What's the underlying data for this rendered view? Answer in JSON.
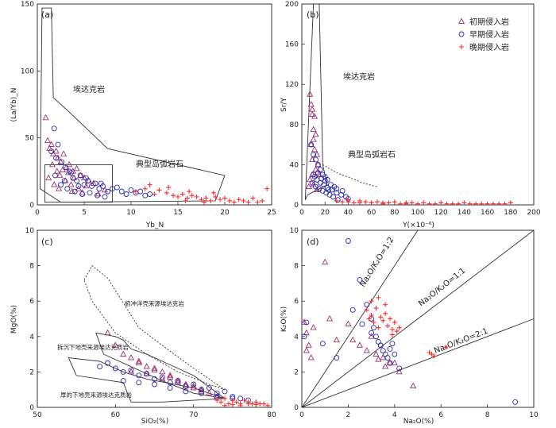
{
  "colors": {
    "early_intrusion_triangle": "#a0306a",
    "mid_intrusion_circle": "#2a2ab0",
    "late_intrusion_cross": "#ff2a2a"
  },
  "legend": [
    {
      "label": "初期侵入岩",
      "symbol": "triangle",
      "color": "#a0306a"
    },
    {
      "label": "早期侵入岩",
      "symbol": "circle",
      "color": "#2a2ab0"
    },
    {
      "label": "晚期侵入岩",
      "symbol": "cross",
      "color": "#ff2a2a"
    }
  ],
  "chart_data": [
    {
      "panel": "(a)",
      "type": "scatter",
      "xlabel": "Yb_N",
      "ylabel": "(La/Yb)_N",
      "xlim": [
        0,
        25
      ],
      "ylim": [
        0,
        150
      ],
      "xticks": [
        0,
        5,
        10,
        15,
        20,
        25
      ],
      "yticks": [
        0,
        50,
        100,
        150
      ],
      "annotations": [
        "埃达克岩",
        "典型岛弧岩石"
      ],
      "fields": [
        {
          "name": "埃达克岩",
          "points": [
            [
              0.5,
              147
            ],
            [
              1.5,
              147
            ],
            [
              1.7,
              80
            ],
            [
              3,
              72
            ],
            [
              7.5,
              42
            ],
            [
              20,
              22
            ],
            [
              19,
              3
            ],
            [
              2.5,
              2
            ],
            [
              0.3,
              12
            ]
          ]
        },
        {
          "name": "典型岛弧岩石",
          "points": [
            [
              0.8,
              30
            ],
            [
              8,
              30
            ],
            [
              8,
              2
            ],
            [
              0.8,
              2
            ]
          ]
        }
      ],
      "series": [
        {
          "name": "初期侵入岩",
          "marker": "triangle",
          "x": [
            0.9,
            1.1,
            1.3,
            1.5,
            1.7,
            2.0,
            2.2,
            2.5,
            2.8,
            3.1,
            3.4,
            3.8,
            4.2,
            4.6,
            5.0,
            5.5,
            6.0,
            1.2,
            1.8,
            2.4,
            3.0,
            3.6,
            4.4,
            5.2,
            2.1,
            2.7,
            3.3,
            3.9,
            1.6,
            2.3,
            3.7,
            4.8,
            6.5,
            7.2
          ],
          "y": [
            65,
            48,
            42,
            45,
            38,
            40,
            35,
            32,
            38,
            28,
            30,
            25,
            27,
            22,
            20,
            18,
            16,
            20,
            15,
            22,
            18,
            15,
            12,
            14,
            25,
            26,
            24,
            20,
            30,
            12,
            10,
            9,
            8,
            11
          ]
        },
        {
          "name": "早期侵入岩",
          "marker": "circle",
          "x": [
            1.8,
            2.2,
            2.6,
            3.0,
            3.4,
            3.8,
            4.2,
            4.6,
            5.0,
            5.4,
            5.8,
            6.2,
            6.6,
            7.0,
            7.5,
            8.0,
            8.5,
            9.0,
            9.5,
            10.0,
            10.5,
            11.0,
            11.5,
            12.0,
            2.5,
            3.2,
            4.0,
            4.8,
            5.6,
            6.4,
            7.2,
            2.0,
            3.6,
            5.2,
            6.8,
            1.5,
            2.9,
            4.4,
            1.9
          ],
          "y": [
            57,
            45,
            32,
            28,
            25,
            20,
            18,
            22,
            15,
            18,
            14,
            16,
            12,
            14,
            10,
            12,
            13,
            10,
            8,
            11,
            9,
            10,
            7,
            8,
            15,
            12,
            10,
            8,
            9,
            7,
            6,
            35,
            24,
            20,
            16,
            40,
            18,
            14,
            22
          ]
        },
        {
          "name": "晚期侵入岩",
          "marker": "cross",
          "x": [
            10.5,
            11.5,
            12.5,
            13.0,
            13.8,
            14.5,
            15.0,
            15.5,
            16.0,
            16.5,
            17.0,
            17.5,
            18.0,
            18.5,
            19.0,
            19.5,
            20.0,
            20.5,
            21.0,
            21.5,
            22.0,
            22.5,
            23.0,
            23.5,
            24.0,
            24.5,
            12.0,
            14.0,
            16.2,
            18.8,
            15.8,
            17.8
          ],
          "y": [
            10,
            12,
            8,
            11,
            9,
            7,
            6,
            8,
            5,
            7,
            6,
            4,
            5,
            3,
            6,
            4,
            5,
            3,
            2,
            4,
            3,
            2,
            5,
            2,
            3,
            12,
            15,
            13,
            10,
            9,
            3,
            2
          ]
        }
      ]
    },
    {
      "panel": "(b)",
      "type": "scatter",
      "xlabel": "Y(×10⁻⁶)",
      "ylabel": "Sr/Y",
      "xlim": [
        0,
        200
      ],
      "ylim": [
        0,
        200
      ],
      "xticks": [
        0,
        20,
        40,
        60,
        80,
        100,
        120,
        140,
        160,
        180,
        200
      ],
      "yticks": [
        0,
        40,
        80,
        120,
        160,
        200
      ],
      "annotations": [
        "埃达克岩",
        "典型岛弧岩石"
      ],
      "fields": [
        {
          "name": "埃达克岩",
          "points": [
            [
              10,
              200
            ],
            [
              15,
              200
            ],
            [
              18,
              40
            ],
            [
              22,
              20
            ],
            [
              5,
              10
            ],
            [
              3,
              5
            ]
          ]
        },
        {
          "name": "典型岛弧岩石",
          "points": [
            [
              18,
              40
            ],
            [
              30,
              32
            ],
            [
              46,
              25
            ],
            [
              52,
              22
            ],
            [
              65,
              18
            ]
          ],
          "style": "dashed"
        }
      ],
      "series": [
        {
          "name": "初期侵入岩",
          "marker": "triangle",
          "x": [
            7,
            8,
            9,
            9,
            10,
            11,
            12,
            8,
            10,
            13,
            14,
            9,
            11,
            12,
            15,
            7,
            10,
            13,
            6,
            9
          ],
          "y": [
            110,
            100,
            90,
            95,
            75,
            88,
            70,
            60,
            65,
            50,
            40,
            45,
            55,
            35,
            30,
            25,
            20,
            15,
            18,
            30
          ]
        },
        {
          "name": "早期侵入岩",
          "marker": "circle",
          "x": [
            8,
            10,
            12,
            14,
            16,
            18,
            20,
            22,
            25,
            28,
            30,
            35,
            10,
            13,
            16,
            19,
            22,
            26,
            30,
            34,
            38,
            40,
            12,
            15,
            18,
            21,
            24,
            9,
            11,
            14,
            17,
            20,
            23,
            27,
            31
          ],
          "y": [
            60,
            50,
            45,
            40,
            35,
            30,
            28,
            25,
            20,
            18,
            16,
            14,
            30,
            25,
            22,
            20,
            17,
            15,
            12,
            10,
            8,
            6,
            18,
            16,
            14,
            12,
            10,
            22,
            28,
            32,
            26,
            24,
            15,
            8,
            5
          ]
        },
        {
          "name": "晚期侵入岩",
          "marker": "cross",
          "x": [
            30,
            35,
            40,
            45,
            50,
            55,
            60,
            65,
            70,
            75,
            80,
            85,
            90,
            95,
            100,
            105,
            110,
            115,
            120,
            125,
            130,
            135,
            140,
            145,
            150,
            155,
            160,
            165,
            170,
            175,
            180,
            40,
            50,
            60,
            70,
            90
          ],
          "y": [
            4,
            3,
            5,
            2,
            4,
            3,
            2,
            3,
            2,
            2,
            3,
            1,
            2,
            2,
            1,
            2,
            1,
            1,
            2,
            1,
            1,
            1,
            2,
            1,
            1,
            1,
            1,
            1,
            1,
            1,
            2,
            3,
            2,
            2,
            1,
            1
          ]
        }
      ]
    },
    {
      "panel": "(c)",
      "type": "scatter",
      "xlabel": "SiO₂(%)",
      "ylabel": "MgO(%)",
      "xlim": [
        50,
        80
      ],
      "ylim": [
        0,
        10
      ],
      "xticks": [
        50,
        60,
        70,
        80
      ],
      "yticks": [
        0,
        2,
        4,
        6,
        8,
        10
      ],
      "annotations": [
        "俯冲洋壳来源埃达克岩",
        "拆沉下地壳来源埃达克质岩",
        "厚的下地壳来源埃达克质岩"
      ],
      "fields": [
        {
          "name": "俯冲洋壳来源埃达克岩",
          "points": [
            [
              56,
              7.2
            ],
            [
              57,
              8.0
            ],
            [
              59,
              7.3
            ],
            [
              63,
              4.5
            ],
            [
              66,
              3.5
            ],
            [
              70,
              2.2
            ],
            [
              74,
              1.0
            ],
            [
              72,
              1.3
            ],
            [
              68,
              2.0
            ],
            [
              64,
              3.0
            ],
            [
              60,
              4.2
            ],
            [
              57,
              6.0
            ]
          ],
          "style": "dotted"
        },
        {
          "name": "拆沉下地壳来源埃达克质岩",
          "points": [
            [
              57.5,
              4.2
            ],
            [
              60,
              4.0
            ],
            [
              61,
              3.8
            ],
            [
              62,
              3.3
            ],
            [
              64,
              3.0
            ],
            [
              67,
              2.4
            ],
            [
              70,
              1.8
            ],
            [
              74,
              0.5
            ],
            [
              70,
              0.8
            ],
            [
              66,
              1.5
            ],
            [
              62,
              2.3
            ],
            [
              58.5,
              3.0
            ]
          ]
        },
        {
          "name": "厚的下地壳来源埃达克质岩",
          "points": [
            [
              54,
              2.8
            ],
            [
              58,
              2.6
            ],
            [
              61,
              2.0
            ],
            [
              64,
              1.6
            ],
            [
              70,
              1.1
            ],
            [
              74,
              0.5
            ],
            [
              66,
              0.3
            ],
            [
              62,
              0.3
            ],
            [
              61,
              1.4
            ],
            [
              55,
              1.8
            ]
          ]
        }
      ],
      "series": [
        {
          "name": "初期侵入岩",
          "marker": "triangle",
          "x": [
            59,
            60,
            61,
            62,
            63,
            64,
            65,
            66,
            67,
            68,
            69,
            70,
            71,
            72,
            73,
            62,
            64,
            66,
            68,
            70,
            63,
            65,
            67,
            69,
            71
          ],
          "y": [
            4.2,
            3.5,
            3.0,
            2.8,
            2.5,
            2.3,
            2.2,
            2.0,
            1.8,
            1.5,
            1.3,
            1.2,
            1.0,
            0.8,
            0.6,
            2.0,
            1.9,
            1.6,
            1.4,
            1.1,
            2.6,
            2.1,
            1.7,
            1.2,
            0.9
          ]
        },
        {
          "name": "早期侵入岩",
          "marker": "circle",
          "x": [
            58,
            59,
            60,
            61,
            62,
            63,
            64,
            65,
            66,
            67,
            68,
            69,
            70,
            71,
            72,
            73,
            74,
            75,
            76,
            77,
            61,
            63,
            65,
            67,
            69,
            71,
            73,
            75
          ],
          "y": [
            2.3,
            2.5,
            2.2,
            2.0,
            2.1,
            1.8,
            1.9,
            1.6,
            1.7,
            1.4,
            1.5,
            1.2,
            1.3,
            1.0,
            1.1,
            0.8,
            0.9,
            0.6,
            0.5,
            0.4,
            1.5,
            1.4,
            1.3,
            1.1,
            0.9,
            0.8,
            0.6,
            0.5
          ]
        },
        {
          "name": "晚期侵入岩",
          "marker": "cross",
          "x": [
            73,
            73.5,
            74,
            74.5,
            75,
            75.5,
            76,
            76.5,
            77,
            77.5,
            78,
            78.5,
            79,
            79.5,
            74,
            75,
            76,
            77,
            78
          ],
          "y": [
            0.4,
            0.3,
            0.5,
            0.2,
            0.4,
            0.3,
            0.2,
            0.4,
            0.3,
            0.2,
            0.3,
            0.2,
            0.2,
            0.1,
            0.1,
            0.15,
            0.1,
            0.2,
            0.15
          ]
        }
      ]
    },
    {
      "panel": "(d)",
      "type": "scatter",
      "xlabel": "Na₂O(%)",
      "ylabel": "K₂O(%)",
      "xlim": [
        0,
        10
      ],
      "ylim": [
        0,
        10
      ],
      "xticks": [
        0,
        2,
        4,
        6,
        8,
        10
      ],
      "yticks": [
        0,
        2,
        4,
        6,
        8,
        10
      ],
      "annotations": [
        "Na₂O/K₂O=1:2",
        "Na₂O/K₂O=1:1",
        "Na₂O/K₂O=2:1"
      ],
      "reference_lines": [
        {
          "label": "Na₂O/K₂O=1:2",
          "slope": 2
        },
        {
          "label": "Na₂O/K₂O=1:1",
          "slope": 1
        },
        {
          "label": "Na₂O/K₂O=2:1",
          "slope": 0.5
        }
      ],
      "series": [
        {
          "name": "初期侵入岩",
          "marker": "triangle",
          "x": [
            0.1,
            0.2,
            0.3,
            0.5,
            1.0,
            1.5,
            2.0,
            2.5,
            3.0,
            3.2,
            3.5,
            3.8,
            4.0,
            4.2,
            4.8,
            0.2,
            0.4,
            2.2,
            2.8,
            3.3,
            3.6,
            1.2
          ],
          "y": [
            4.8,
            4.2,
            3.5,
            4.5,
            8.2,
            3.8,
            4.7,
            3.5,
            4.0,
            3.0,
            2.8,
            2.5,
            2.5,
            2.0,
            1.2,
            3.2,
            2.8,
            3.8,
            3.2,
            2.7,
            2.3,
            5.0
          ]
        },
        {
          "name": "早期侵入岩",
          "marker": "circle",
          "x": [
            2.0,
            2.5,
            2.8,
            3.0,
            3.1,
            3.2,
            3.3,
            3.4,
            3.5,
            3.6,
            3.7,
            3.8,
            3.9,
            4.0,
            4.2,
            0.1,
            0.2,
            1.5,
            2.2,
            2.6,
            3.0,
            3.4,
            3.8,
            9.2,
            0.9
          ],
          "y": [
            9.4,
            7.2,
            5.8,
            5.0,
            4.5,
            4.0,
            3.7,
            3.5,
            3.2,
            3.0,
            2.8,
            3.3,
            3.6,
            3.0,
            2.2,
            4.0,
            4.8,
            2.8,
            5.5,
            4.7,
            4.2,
            3.5,
            2.5,
            0.3,
            3.6
          ]
        },
        {
          "name": "晚期侵入岩",
          "marker": "cross",
          "x": [
            2.8,
            2.9,
            3.0,
            3.1,
            3.2,
            3.3,
            3.4,
            3.5,
            3.6,
            3.7,
            3.8,
            3.9,
            4.0,
            4.1,
            4.2,
            5.5,
            5.6,
            5.7,
            6.2,
            3.0,
            3.3,
            3.6,
            3.9
          ],
          "y": [
            5.5,
            5.0,
            5.2,
            4.8,
            5.6,
            4.5,
            5.1,
            4.9,
            5.3,
            4.6,
            5.0,
            4.4,
            4.8,
            4.3,
            4.5,
            3.1,
            3.0,
            2.9,
            3.4,
            6.0,
            6.2,
            5.8,
            4.1
          ]
        }
      ]
    }
  ]
}
